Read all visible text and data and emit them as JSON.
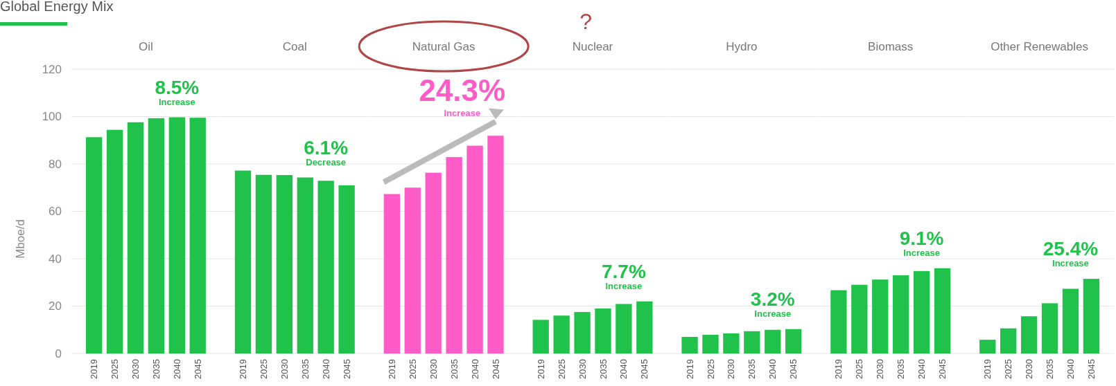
{
  "chart_data": [
    {
      "type": "bar",
      "title": "Oil",
      "subtitle": "Global Energy Mix",
      "ylabel": "Mboe/d",
      "categories": [
        "2019",
        "2025",
        "2030",
        "2035",
        "2040",
        "2045"
      ],
      "values": [
        91.3,
        94.4,
        97.6,
        99.3,
        99.7,
        99.5
      ],
      "color": "#21c24b",
      "ylim": [
        0,
        120
      ],
      "yticks": [
        0,
        20,
        40,
        60,
        80,
        100,
        120
      ],
      "grid": "y",
      "annotations": [
        "8.5%",
        "Increase"
      ]
    },
    {
      "type": "bar",
      "title": "Coal",
      "categories": [
        "2019",
        "2025",
        "2030",
        "2035",
        "2040",
        "2045"
      ],
      "values": [
        77.2,
        75.4,
        75.3,
        74.3,
        72.9,
        71.0
      ],
      "color": "#21c24b",
      "ylim": [
        0,
        120
      ],
      "yticks": [
        0,
        20,
        40,
        60,
        80,
        100,
        120
      ],
      "grid": "y",
      "tick_labels": "x",
      "annotations": [
        "6.1%",
        "Decrease"
      ]
    },
    {
      "type": "bar",
      "title": "Natural Gas",
      "categories": [
        "2019",
        "2025",
        "2030",
        "2035",
        "2040",
        "2045"
      ],
      "values": [
        67.3,
        70.0,
        76.3,
        82.9,
        87.7,
        91.9
      ],
      "color": "#ff5cc8",
      "ylim": [
        0,
        120
      ],
      "yticks": [
        0,
        20,
        40,
        60,
        80,
        100,
        120
      ],
      "grid": "y",
      "tick_labels": "x",
      "annotations": [
        "24.3%",
        "Increase",
        "?"
      ]
    },
    {
      "type": "bar",
      "title": "Nuclear",
      "categories": [
        "2019",
        "2025",
        "2030",
        "2035",
        "2040",
        "2045"
      ],
      "values": [
        14.2,
        16.0,
        17.5,
        19.0,
        20.9,
        22.0
      ],
      "color": "#21c24b",
      "ylim": [
        0,
        120
      ],
      "yticks": [
        0,
        20,
        40,
        60,
        80,
        100,
        120
      ],
      "grid": "y",
      "tick_labels": "x",
      "annotations": [
        "7.7%",
        "Increase"
      ]
    },
    {
      "type": "bar",
      "title": "Hydro",
      "categories": [
        "2019",
        "2025",
        "2030",
        "2035",
        "2040",
        "2045"
      ],
      "values": [
        7.0,
        7.9,
        8.5,
        9.4,
        10.0,
        10.3
      ],
      "color": "#21c24b",
      "ylim": [
        0,
        120
      ],
      "yticks": [
        0,
        20,
        40,
        60,
        80,
        100,
        120
      ],
      "grid": "y",
      "tick_labels": "x",
      "annotations": [
        "3.2%",
        "Increase"
      ]
    },
    {
      "type": "bar",
      "title": "Biomass",
      "categories": [
        "2019",
        "2025",
        "2030",
        "2035",
        "2040",
        "2045"
      ],
      "values": [
        26.7,
        29.0,
        31.2,
        33.0,
        34.8,
        36.0
      ],
      "color": "#21c24b",
      "ylim": [
        0,
        120
      ],
      "yticks": [
        0,
        20,
        40,
        60,
        80,
        100,
        120
      ],
      "grid": "y",
      "tick_labels": "x",
      "annotations": [
        "9.1%",
        "Increase"
      ]
    },
    {
      "type": "bar",
      "title": "Other Renewables",
      "categories": [
        "2019",
        "2025",
        "2030",
        "2035",
        "2040",
        "2045"
      ],
      "values": [
        5.8,
        10.6,
        15.7,
        21.2,
        27.3,
        31.5
      ],
      "color": "#21c24b",
      "ylim": [
        0,
        120
      ],
      "yticks": [
        0,
        20,
        40,
        60,
        80,
        100,
        120
      ],
      "grid": "y",
      "tick_labels": "x",
      "annotations": [
        "25.4%",
        "Increase"
      ]
    }
  ]
}
